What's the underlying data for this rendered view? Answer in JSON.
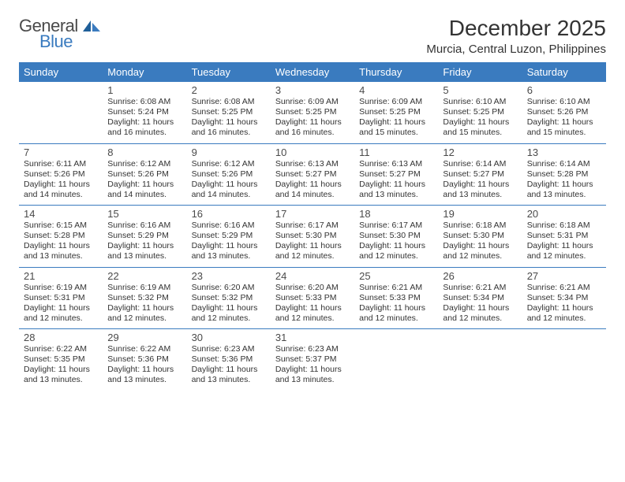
{
  "logo": {
    "general": "General",
    "blue": "Blue"
  },
  "title": "December 2025",
  "location": "Murcia, Central Luzon, Philippines",
  "colors": {
    "header_bg": "#3a7bbf",
    "header_text": "#ffffff",
    "border": "#3a7bbf",
    "text": "#333333",
    "daynum": "#4a4a4a",
    "page_bg": "#ffffff"
  },
  "weekdays": [
    "Sunday",
    "Monday",
    "Tuesday",
    "Wednesday",
    "Thursday",
    "Friday",
    "Saturday"
  ],
  "layout": {
    "cols": 7,
    "rows": 5,
    "first_weekday_index": 1
  },
  "font": {
    "title_size": 28,
    "location_size": 15,
    "th_size": 13,
    "daynum_size": 13,
    "info_size": 10.5
  },
  "days": [
    {
      "n": 1,
      "sunrise": "6:08 AM",
      "sunset": "5:24 PM",
      "daylight": "11 hours and 16 minutes."
    },
    {
      "n": 2,
      "sunrise": "6:08 AM",
      "sunset": "5:25 PM",
      "daylight": "11 hours and 16 minutes."
    },
    {
      "n": 3,
      "sunrise": "6:09 AM",
      "sunset": "5:25 PM",
      "daylight": "11 hours and 16 minutes."
    },
    {
      "n": 4,
      "sunrise": "6:09 AM",
      "sunset": "5:25 PM",
      "daylight": "11 hours and 15 minutes."
    },
    {
      "n": 5,
      "sunrise": "6:10 AM",
      "sunset": "5:25 PM",
      "daylight": "11 hours and 15 minutes."
    },
    {
      "n": 6,
      "sunrise": "6:10 AM",
      "sunset": "5:26 PM",
      "daylight": "11 hours and 15 minutes."
    },
    {
      "n": 7,
      "sunrise": "6:11 AM",
      "sunset": "5:26 PM",
      "daylight": "11 hours and 14 minutes."
    },
    {
      "n": 8,
      "sunrise": "6:12 AM",
      "sunset": "5:26 PM",
      "daylight": "11 hours and 14 minutes."
    },
    {
      "n": 9,
      "sunrise": "6:12 AM",
      "sunset": "5:26 PM",
      "daylight": "11 hours and 14 minutes."
    },
    {
      "n": 10,
      "sunrise": "6:13 AM",
      "sunset": "5:27 PM",
      "daylight": "11 hours and 14 minutes."
    },
    {
      "n": 11,
      "sunrise": "6:13 AM",
      "sunset": "5:27 PM",
      "daylight": "11 hours and 13 minutes."
    },
    {
      "n": 12,
      "sunrise": "6:14 AM",
      "sunset": "5:27 PM",
      "daylight": "11 hours and 13 minutes."
    },
    {
      "n": 13,
      "sunrise": "6:14 AM",
      "sunset": "5:28 PM",
      "daylight": "11 hours and 13 minutes."
    },
    {
      "n": 14,
      "sunrise": "6:15 AM",
      "sunset": "5:28 PM",
      "daylight": "11 hours and 13 minutes."
    },
    {
      "n": 15,
      "sunrise": "6:16 AM",
      "sunset": "5:29 PM",
      "daylight": "11 hours and 13 minutes."
    },
    {
      "n": 16,
      "sunrise": "6:16 AM",
      "sunset": "5:29 PM",
      "daylight": "11 hours and 13 minutes."
    },
    {
      "n": 17,
      "sunrise": "6:17 AM",
      "sunset": "5:30 PM",
      "daylight": "11 hours and 12 minutes."
    },
    {
      "n": 18,
      "sunrise": "6:17 AM",
      "sunset": "5:30 PM",
      "daylight": "11 hours and 12 minutes."
    },
    {
      "n": 19,
      "sunrise": "6:18 AM",
      "sunset": "5:30 PM",
      "daylight": "11 hours and 12 minutes."
    },
    {
      "n": 20,
      "sunrise": "6:18 AM",
      "sunset": "5:31 PM",
      "daylight": "11 hours and 12 minutes."
    },
    {
      "n": 21,
      "sunrise": "6:19 AM",
      "sunset": "5:31 PM",
      "daylight": "11 hours and 12 minutes."
    },
    {
      "n": 22,
      "sunrise": "6:19 AM",
      "sunset": "5:32 PM",
      "daylight": "11 hours and 12 minutes."
    },
    {
      "n": 23,
      "sunrise": "6:20 AM",
      "sunset": "5:32 PM",
      "daylight": "11 hours and 12 minutes."
    },
    {
      "n": 24,
      "sunrise": "6:20 AM",
      "sunset": "5:33 PM",
      "daylight": "11 hours and 12 minutes."
    },
    {
      "n": 25,
      "sunrise": "6:21 AM",
      "sunset": "5:33 PM",
      "daylight": "11 hours and 12 minutes."
    },
    {
      "n": 26,
      "sunrise": "6:21 AM",
      "sunset": "5:34 PM",
      "daylight": "11 hours and 12 minutes."
    },
    {
      "n": 27,
      "sunrise": "6:21 AM",
      "sunset": "5:34 PM",
      "daylight": "11 hours and 12 minutes."
    },
    {
      "n": 28,
      "sunrise": "6:22 AM",
      "sunset": "5:35 PM",
      "daylight": "11 hours and 13 minutes."
    },
    {
      "n": 29,
      "sunrise": "6:22 AM",
      "sunset": "5:36 PM",
      "daylight": "11 hours and 13 minutes."
    },
    {
      "n": 30,
      "sunrise": "6:23 AM",
      "sunset": "5:36 PM",
      "daylight": "11 hours and 13 minutes."
    },
    {
      "n": 31,
      "sunrise": "6:23 AM",
      "sunset": "5:37 PM",
      "daylight": "11 hours and 13 minutes."
    }
  ],
  "labels": {
    "sunrise": "Sunrise:",
    "sunset": "Sunset:",
    "daylight": "Daylight:"
  }
}
